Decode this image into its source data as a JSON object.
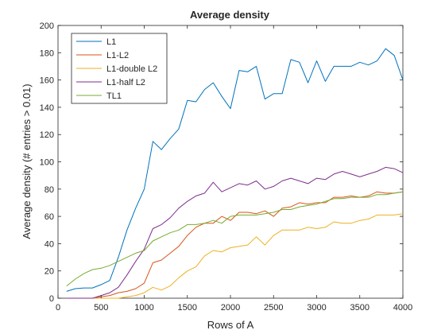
{
  "chart_data": {
    "type": "line",
    "title": "Average density",
    "xlabel": "Rows of A",
    "ylabel": "Average density (# entries > 0.01)",
    "xlim": [
      0,
      4000
    ],
    "ylim": [
      0,
      200
    ],
    "xticks": [
      0,
      500,
      1000,
      1500,
      2000,
      2500,
      3000,
      3500,
      4000
    ],
    "yticks": [
      0,
      20,
      40,
      60,
      80,
      100,
      120,
      140,
      160,
      180,
      200
    ],
    "grid": false,
    "legend_position": "top-left",
    "x": [
      100,
      200,
      300,
      400,
      500,
      600,
      700,
      800,
      900,
      1000,
      1100,
      1200,
      1300,
      1400,
      1500,
      1600,
      1700,
      1800,
      1900,
      2000,
      2100,
      2200,
      2300,
      2400,
      2500,
      2600,
      2700,
      2800,
      2900,
      3000,
      3100,
      3200,
      3300,
      3400,
      3500,
      3600,
      3700,
      3800,
      3900,
      4000
    ],
    "series": [
      {
        "name": "L1",
        "color": "#0072BD",
        "values": [
          5,
          7,
          7.5,
          7.5,
          10,
          13,
          30,
          50,
          66,
          80,
          115,
          109,
          117,
          124,
          145,
          144,
          153,
          158,
          148,
          139,
          167,
          166,
          170,
          146,
          150,
          150,
          175,
          173,
          158,
          174,
          159,
          170,
          170,
          170,
          173,
          171,
          174,
          183,
          178,
          160
        ]
      },
      {
        "name": "L1-L2",
        "color": "#D95319",
        "values": [
          0,
          0,
          0,
          0,
          1,
          2,
          4,
          5,
          7,
          11,
          26,
          28,
          33,
          38,
          46,
          52,
          55,
          55,
          60,
          57,
          63,
          63,
          62,
          64,
          60,
          66,
          67,
          70,
          69,
          70,
          70,
          74,
          74,
          75,
          74,
          75,
          78,
          77,
          77,
          78
        ]
      },
      {
        "name": "L1-double L2",
        "color": "#EDB120",
        "values": [
          0,
          0,
          0,
          0,
          0,
          0,
          0,
          1,
          2,
          4,
          8,
          6,
          9,
          15,
          20,
          23,
          31,
          35,
          34,
          37,
          38,
          39,
          45,
          39,
          46,
          50,
          50,
          50,
          52,
          51,
          52,
          56,
          55,
          55,
          57,
          58,
          61,
          61,
          61,
          62
        ]
      },
      {
        "name": "L1-half L2",
        "color": "#7E2F8E",
        "values": [
          0,
          0,
          0,
          0,
          2,
          4,
          8,
          17,
          27,
          36,
          51,
          54,
          59,
          66,
          71,
          75,
          77,
          85,
          78,
          81,
          84,
          83,
          86,
          80,
          82,
          86,
          88,
          86,
          84,
          88,
          87,
          91,
          93,
          91,
          89,
          91,
          93,
          96,
          95,
          92
        ]
      },
      {
        "name": "TL1",
        "color": "#77AC30",
        "values": [
          9,
          14,
          18,
          21,
          22,
          24,
          27,
          30,
          33,
          35,
          42,
          45,
          48,
          50,
          54,
          54,
          55,
          57,
          55,
          60,
          61,
          61,
          61,
          62,
          63,
          65,
          65,
          67,
          68,
          69,
          71,
          73,
          73,
          74,
          74,
          74,
          76,
          76,
          77,
          78
        ]
      }
    ]
  }
}
